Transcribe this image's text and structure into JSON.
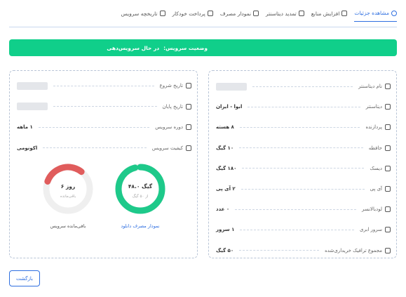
{
  "tabs": [
    "مشاهده جزئیات",
    "افزایش منابع",
    "تمدید دیتاسنتر",
    "نمودار مصرف",
    "پرداخت خودکار",
    "تاریخچه سرویس"
  ],
  "active_tab": 0,
  "status": {
    "label": "وضعیت سرویس:",
    "value": "در حال سرویس‌دهی"
  },
  "details": {
    "rows": [
      {
        "label": "نام دیتاسنتر",
        "value": null
      },
      {
        "label": "دیتاسنتر",
        "value": "ابوا - ایران"
      },
      {
        "label": "پردازنده",
        "value": "۸ هسته"
      },
      {
        "label": "حافظه",
        "value": "۱۰ گیگ"
      },
      {
        "label": "دیسک",
        "value": "۱۸۰ گیگ"
      },
      {
        "label": "آی پی",
        "value": "۲ آی پی"
      },
      {
        "label": "لودبالانسر",
        "value": "۰ عدد"
      },
      {
        "label": "سرور ابری",
        "value": "۱ سرور"
      },
      {
        "label": "مجموع ترافیک خریداری‌شده",
        "value": "۵۰ گیگ"
      }
    ]
  },
  "service": {
    "rows": [
      {
        "label": "تاریخ شروع",
        "value": null
      },
      {
        "label": "تاریخ پایان",
        "value": null
      },
      {
        "label": "دوره سرویس",
        "value": "۱ ماهه"
      },
      {
        "label": "کیفیت سرویس",
        "value": "اکونومی"
      }
    ],
    "charts": [
      {
        "type": "donut",
        "percent": 96,
        "color": "#1ec98a",
        "value_label": "۴۸.۰ گیگ",
        "sub_label": "از ۵۰ گیگ",
        "caption": "نمودار مصرف دانلود"
      },
      {
        "type": "donut",
        "percent": 30,
        "color": "#e05c5c",
        "value_label": "۶ روز",
        "sub_label": "باقی‌مانده",
        "caption": "باقی‌مانده سرویس"
      }
    ]
  },
  "back_button": "بازگشت"
}
